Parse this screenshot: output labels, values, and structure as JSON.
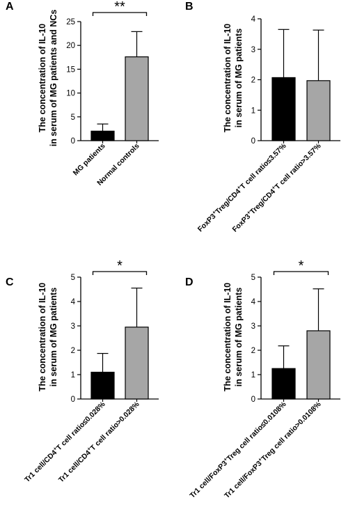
{
  "chart_data": [
    {
      "panel": "A",
      "type": "bar",
      "ylabel_lines": [
        "The concentration of IL-10",
        "in serum of MG patients and NCs"
      ],
      "categories": [
        "MG patients",
        "Normal controls"
      ],
      "values": [
        2.0,
        17.6
      ],
      "errors": [
        1.5,
        5.3
      ],
      "colors": [
        "#000000",
        "#a6a6a6"
      ],
      "ylim": [
        0,
        25
      ],
      "ticks": [
        0,
        5,
        10,
        15,
        20,
        25
      ],
      "significance": "**"
    },
    {
      "panel": "B",
      "type": "bar",
      "ylabel_lines": [
        "The concentration of IL-10",
        "in serum of MG patients"
      ],
      "categories": [
        "FoxP3+Treg/CD4+T cell ratio≤3.57%",
        "FoxP3+Treg/CD4+T cell ratio>3.57%"
      ],
      "categories_display": [
        [
          [
            "FoxP3",
            ""
          ],
          [
            "+",
            "sup"
          ],
          [
            "Treg/CD4",
            ""
          ],
          [
            "+",
            "sup"
          ],
          [
            "T cell ratio≤3.57%",
            ""
          ]
        ],
        [
          [
            "FoxP3",
            ""
          ],
          [
            "+",
            "sup"
          ],
          [
            "Treg/CD4",
            ""
          ],
          [
            "+",
            "sup"
          ],
          [
            "T cell ratio>3.57%",
            ""
          ]
        ]
      ],
      "values": [
        2.07,
        1.97
      ],
      "errors": [
        1.58,
        1.66
      ],
      "colors": [
        "#000000",
        "#a6a6a6"
      ],
      "ylim": [
        0,
        4
      ],
      "ticks": [
        0,
        1,
        2,
        3,
        4
      ],
      "significance": ""
    },
    {
      "panel": "C",
      "type": "bar",
      "ylabel_lines": [
        "The concentration of IL-10",
        "in serum of MG patients"
      ],
      "categories": [
        "Tr1 cell/CD4+T cell ratio≤0.028%",
        "Tr1 cell/CD4+T cell ratio>0.028%"
      ],
      "categories_display": [
        [
          [
            "Tr1 cell/CD4",
            ""
          ],
          [
            "+",
            "sup"
          ],
          [
            "T cell ratio≤0.028%",
            ""
          ]
        ],
        [
          [
            "Tr1 cell/CD4",
            ""
          ],
          [
            "+",
            "sup"
          ],
          [
            "T cell ratio>0.028%",
            ""
          ]
        ]
      ],
      "values": [
        1.1,
        2.95
      ],
      "errors": [
        0.77,
        1.6
      ],
      "colors": [
        "#000000",
        "#a6a6a6"
      ],
      "ylim": [
        0,
        5
      ],
      "ticks": [
        0,
        1,
        2,
        3,
        4,
        5
      ],
      "significance": "*"
    },
    {
      "panel": "D",
      "type": "bar",
      "ylabel_lines": [
        "The concentration of IL-10",
        "in serum of MG patients"
      ],
      "categories": [
        "Tr1 cell/FoxP3+Treg cell ratio≤0.0108%",
        "Tr1 cell/FoxP3+Treg cell ratio>0.0108%"
      ],
      "categories_display": [
        [
          [
            "Tr1 cell/FoxP3",
            ""
          ],
          [
            "+",
            "sup"
          ],
          [
            "Treg cell ratio≤0.0108%",
            ""
          ]
        ],
        [
          [
            "Tr1 cell/FoxP3",
            ""
          ],
          [
            "+",
            "sup"
          ],
          [
            "Treg cell ratio>0.0108%",
            ""
          ]
        ]
      ],
      "values": [
        1.25,
        2.8
      ],
      "errors": [
        0.93,
        1.72
      ],
      "colors": [
        "#000000",
        "#a6a6a6"
      ],
      "ylim": [
        0,
        5
      ],
      "ticks": [
        0,
        1,
        2,
        3,
        4,
        5
      ],
      "significance": "*"
    }
  ]
}
